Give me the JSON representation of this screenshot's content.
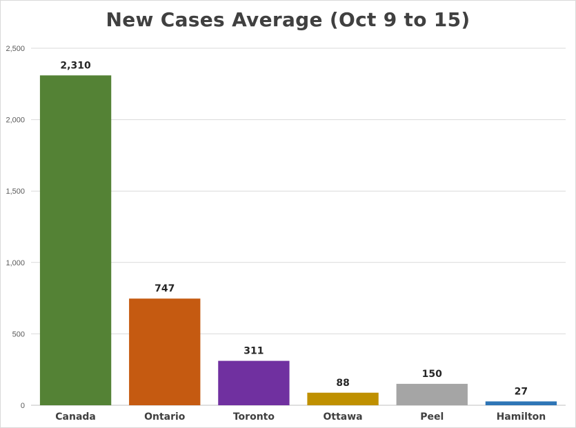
{
  "chart_data": {
    "type": "bar",
    "title": "New Cases Average (Oct 9 to 15)",
    "xlabel": "",
    "ylabel": "",
    "categories": [
      "Canada",
      "Ontario",
      "Toronto",
      "Ottawa",
      "Peel",
      "Hamilton"
    ],
    "values": [
      2310,
      747,
      311,
      88,
      150,
      27
    ],
    "data_labels": [
      "2,310",
      "747",
      "311",
      "88",
      "150",
      "27"
    ],
    "colors": [
      "#548235",
      "#c55a11",
      "#7030a0",
      "#bf9000",
      "#a5a5a5",
      "#2e75b6"
    ],
    "ylim": [
      0,
      2500
    ],
    "yticks": [
      0,
      500,
      1000,
      1500,
      2000,
      2500
    ],
    "ytick_labels": [
      "0",
      "500",
      "1,000",
      "1,500",
      "2,000",
      "2,500"
    ],
    "grid": true,
    "legend": "none"
  }
}
